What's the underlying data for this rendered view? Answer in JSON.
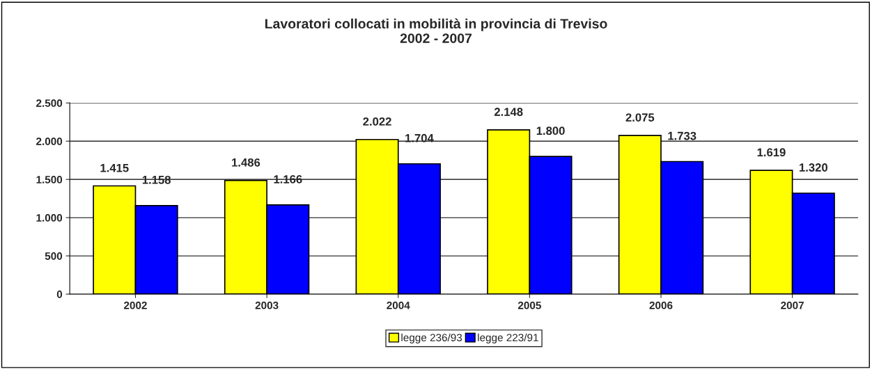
{
  "chart_data": {
    "type": "bar",
    "title": "Lavoratori collocati in mobilità in provincia di Treviso\n2002 - 2007",
    "categories": [
      "2002",
      "2003",
      "2004",
      "2005",
      "2006",
      "2007"
    ],
    "series": [
      {
        "name": "legge 236/93",
        "color": "#ffff00",
        "values": [
          1415,
          1486,
          2022,
          2148,
          2075,
          1619
        ],
        "value_labels": [
          "1.415",
          "1.486",
          "2.022",
          "2.148",
          "2.075",
          "1.619"
        ]
      },
      {
        "name": "legge 223/91",
        "color": "#0000ff",
        "values": [
          1158,
          1166,
          1704,
          1800,
          1733,
          1320
        ],
        "value_labels": [
          "1.158",
          "1.166",
          "1.704",
          "1.800",
          "1.733",
          "1.320"
        ]
      }
    ],
    "ylim": [
      0,
      2500
    ],
    "yticks": [
      0,
      500,
      {
        "value": 1000,
        "label": "1.000"
      },
      {
        "value": 1500,
        "label": "1.500"
      },
      {
        "value": 2000,
        "label": "2.000"
      },
      {
        "value": 2500,
        "label": "2.500"
      }
    ],
    "grid": "y",
    "legend": "bottom"
  }
}
